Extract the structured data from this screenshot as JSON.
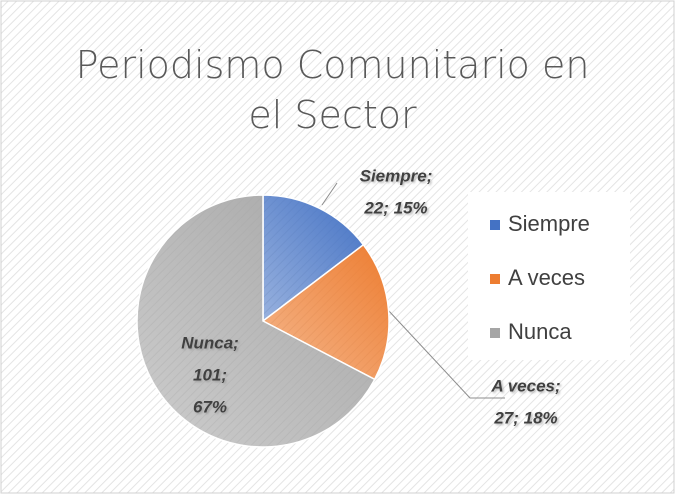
{
  "chart_data": {
    "type": "pie",
    "title": "Periodismo Comunitario en el Sector",
    "categories": [
      "Siempre",
      "A veces",
      "Nunca"
    ],
    "values": [
      22,
      27,
      101
    ],
    "value_labels": [
      [
        "Siempre;",
        "22; 15%"
      ],
      [
        "A veces;",
        "27; 18%"
      ],
      [
        "Nunca;",
        "101;",
        "67%"
      ]
    ],
    "colors": [
      "#4472c4",
      "#ed7d31",
      "#a5a5a5"
    ],
    "legend": "right"
  }
}
